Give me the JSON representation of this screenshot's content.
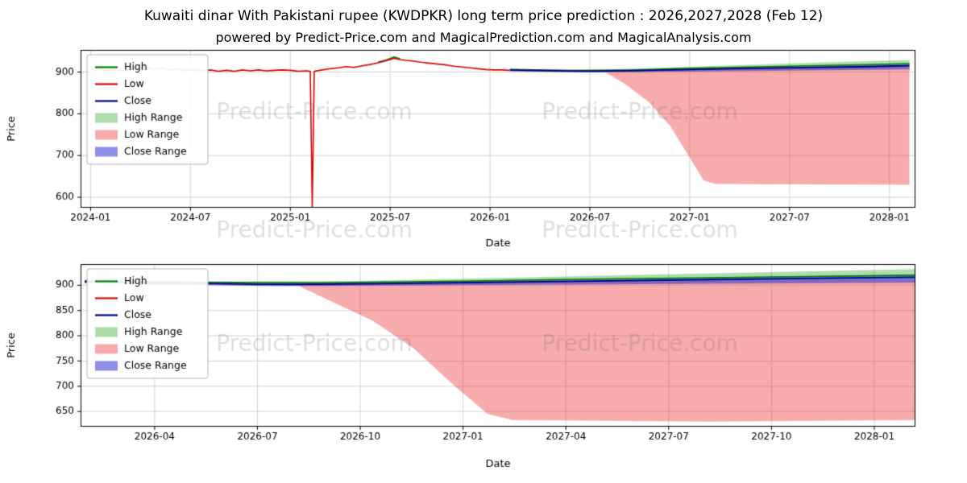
{
  "header": {
    "title": "Kuwaiti dinar With Pakistani rupee (KWDPKR) long term price prediction : 2026,2027,2028 (Feb 12)",
    "subtitle": "powered by Predict-Price.com and MagicalPrediction.com and MagicalAnalysis.com"
  },
  "watermark_text": "Predict-Price.com",
  "colors": {
    "high_line": "#008000",
    "low_line": "#dd0000",
    "close_line": "#00008b",
    "high_range_fill": "rgba(0,150,0,0.32)",
    "low_range_fill": "rgba(235,70,70,0.45)",
    "close_range_fill": "rgba(40,40,210,0.52)",
    "grid": "#d3d3d3",
    "watermark": "rgba(110,110,110,0.22)"
  },
  "chart_data": [
    {
      "type": "line",
      "title": "",
      "xlabel": "Date",
      "ylabel": "Price",
      "xlim": [
        2023.95,
        2028.13
      ],
      "ylim": [
        575,
        953
      ],
      "x_ticks": [
        {
          "v": 2024.0,
          "label": "2024-01"
        },
        {
          "v": 2024.5,
          "label": "2024-07"
        },
        {
          "v": 2025.0,
          "label": "2025-01"
        },
        {
          "v": 2025.5,
          "label": "2025-07"
        },
        {
          "v": 2026.0,
          "label": "2026-01"
        },
        {
          "v": 2026.5,
          "label": "2026-07"
        },
        {
          "v": 2027.0,
          "label": "2027-01"
        },
        {
          "v": 2027.5,
          "label": "2027-07"
        },
        {
          "v": 2028.0,
          "label": "2028-01"
        }
      ],
      "y_ticks": [
        {
          "v": 600,
          "label": "600"
        },
        {
          "v": 700,
          "label": "700"
        },
        {
          "v": 800,
          "label": "800"
        },
        {
          "v": 900,
          "label": "900"
        }
      ],
      "legend": [
        {
          "label": "High",
          "swatch": "line",
          "color": "#008000"
        },
        {
          "label": "Low",
          "swatch": "line",
          "color": "#dd0000"
        },
        {
          "label": "Close",
          "swatch": "line",
          "color": "#00008b"
        },
        {
          "label": "High Range",
          "swatch": "patch",
          "color": "rgba(0,150,0,0.32)"
        },
        {
          "label": "Low Range",
          "swatch": "patch",
          "color": "rgba(235,70,70,0.45)"
        },
        {
          "label": "Close Range",
          "swatch": "patch",
          "color": "rgba(40,40,210,0.52)"
        }
      ],
      "bands": [
        {
          "name": "High Range",
          "color": "rgba(0,150,0,0.32)",
          "upper": [
            [
              2026.1,
              907
            ],
            [
              2026.5,
              905
            ],
            [
              2026.8,
              909
            ],
            [
              2027.2,
              916
            ],
            [
              2027.6,
              922
            ],
            [
              2028.1,
              929
            ]
          ],
          "lower": [
            [
              2026.1,
              903
            ],
            [
              2026.5,
              901
            ],
            [
              2027.0,
              904
            ],
            [
              2027.6,
              908
            ],
            [
              2028.1,
              911
            ]
          ]
        },
        {
          "name": "Low Range",
          "color": "rgba(235,70,70,0.45)",
          "upper": [
            [
              2026.1,
              905
            ],
            [
              2026.5,
              902
            ],
            [
              2027.0,
              906
            ],
            [
              2027.6,
              910
            ],
            [
              2028.1,
              912
            ]
          ],
          "lower": [
            [
              2026.1,
              902
            ],
            [
              2026.58,
              899
            ],
            [
              2026.68,
              870
            ],
            [
              2026.79,
              830
            ],
            [
              2026.9,
              772
            ],
            [
              2027.0,
              695
            ],
            [
              2027.07,
              640
            ],
            [
              2027.13,
              632
            ],
            [
              2027.6,
              631
            ],
            [
              2028.1,
              630
            ]
          ]
        },
        {
          "name": "Close Range",
          "color": "rgba(40,40,210,0.52)",
          "upper": [
            [
              2026.1,
              907
            ],
            [
              2026.5,
              904
            ],
            [
              2027.0,
              908
            ],
            [
              2027.6,
              914
            ],
            [
              2028.1,
              920
            ]
          ],
          "lower": [
            [
              2026.1,
              902
            ],
            [
              2026.5,
              899
            ],
            [
              2027.0,
              901
            ],
            [
              2027.6,
              904
            ],
            [
              2028.1,
              906
            ]
          ]
        }
      ],
      "series": [
        {
          "name": "High",
          "color": "#008000",
          "width": 1.5,
          "points": [
            [
              2025.44,
              924
            ],
            [
              2025.48,
              929
            ],
            [
              2025.52,
              936
            ],
            [
              2025.55,
              932
            ],
            null,
            [
              2026.1,
              906
            ],
            [
              2026.4,
              904
            ],
            [
              2026.7,
              905
            ],
            [
              2027.0,
              909
            ],
            [
              2027.3,
              912
            ],
            [
              2027.6,
              915
            ],
            [
              2027.9,
              918
            ],
            [
              2028.1,
              920
            ]
          ]
        },
        {
          "name": "Close",
          "color": "#00008b",
          "width": 1.8,
          "points": [
            [
              2026.1,
              905
            ],
            [
              2026.3,
              903
            ],
            [
              2026.5,
              902
            ],
            [
              2026.7,
              903
            ],
            [
              2027.0,
              906
            ],
            [
              2027.3,
              909
            ],
            [
              2027.6,
              911
            ],
            [
              2027.9,
              913
            ],
            [
              2028.1,
              915
            ]
          ]
        },
        {
          "name": "Low",
          "color": "#dd0000",
          "width": 1.6,
          "points": [
            [
              2024.0,
              906
            ],
            [
              2024.04,
              909
            ],
            [
              2024.08,
              904
            ],
            [
              2024.12,
              907
            ],
            [
              2024.16,
              903
            ],
            [
              2024.2,
              906
            ],
            [
              2024.24,
              909
            ],
            [
              2024.28,
              911
            ],
            [
              2024.32,
              907
            ],
            [
              2024.36,
              909
            ],
            [
              2024.4,
              905
            ],
            [
              2024.44,
              907
            ],
            [
              2024.48,
              904
            ],
            [
              2024.52,
              906
            ],
            [
              2024.56,
              903
            ],
            [
              2024.6,
              905
            ],
            [
              2024.64,
              902
            ],
            [
              2024.68,
              904
            ],
            [
              2024.72,
              902
            ],
            [
              2024.76,
              905
            ],
            [
              2024.8,
              903
            ],
            [
              2024.84,
              905
            ],
            [
              2024.88,
              903
            ],
            [
              2024.92,
              904
            ],
            [
              2024.96,
              905
            ],
            [
              2025.0,
              904
            ],
            [
              2025.04,
              902
            ],
            [
              2025.08,
              903
            ],
            [
              2025.1,
              902
            ],
            [
              2025.11,
              578
            ],
            [
              2025.12,
              902
            ],
            [
              2025.16,
              905
            ],
            [
              2025.2,
              908
            ],
            [
              2025.24,
              910
            ],
            [
              2025.28,
              913
            ],
            [
              2025.32,
              911
            ],
            [
              2025.36,
              915
            ],
            [
              2025.4,
              918
            ],
            [
              2025.44,
              922
            ],
            [
              2025.48,
              927
            ],
            [
              2025.52,
              933
            ],
            [
              2025.55,
              930
            ],
            [
              2025.58,
              928
            ],
            [
              2025.62,
              926
            ],
            [
              2025.66,
              923
            ],
            [
              2025.7,
              921
            ],
            [
              2025.74,
              919
            ],
            [
              2025.78,
              917
            ],
            [
              2025.82,
              914
            ],
            [
              2025.86,
              912
            ],
            [
              2025.9,
              910
            ],
            [
              2025.94,
              908
            ],
            [
              2025.98,
              906
            ],
            [
              2026.02,
              905
            ],
            [
              2026.06,
              905
            ],
            [
              2026.1,
              904
            ]
          ]
        }
      ],
      "watermarks": [
        {
          "fx": 0.28,
          "fy": 0.4
        },
        {
          "fx": 0.67,
          "fy": 0.4
        },
        {
          "fx": 0.28,
          "fy": 1.15
        },
        {
          "fx": 0.67,
          "fy": 1.15
        }
      ]
    },
    {
      "type": "line",
      "title": "",
      "xlabel": "Date",
      "ylabel": "Price",
      "xlim": [
        2026.07,
        2028.1
      ],
      "ylim": [
        620,
        942
      ],
      "x_ticks": [
        {
          "v": 2026.25,
          "label": "2026-04"
        },
        {
          "v": 2026.5,
          "label": "2026-07"
        },
        {
          "v": 2026.75,
          "label": "2026-10"
        },
        {
          "v": 2027.0,
          "label": "2027-01"
        },
        {
          "v": 2027.25,
          "label": "2027-04"
        },
        {
          "v": 2027.5,
          "label": "2027-07"
        },
        {
          "v": 2027.75,
          "label": "2027-10"
        },
        {
          "v": 2028.0,
          "label": "2028-01"
        }
      ],
      "y_ticks": [
        {
          "v": 650,
          "label": "650"
        },
        {
          "v": 700,
          "label": "700"
        },
        {
          "v": 750,
          "label": "750"
        },
        {
          "v": 800,
          "label": "800"
        },
        {
          "v": 850,
          "label": "850"
        },
        {
          "v": 900,
          "label": "900"
        }
      ],
      "legend": [
        {
          "label": "High",
          "swatch": "line",
          "color": "#008000"
        },
        {
          "label": "Low",
          "swatch": "line",
          "color": "#dd0000"
        },
        {
          "label": "Close",
          "swatch": "line",
          "color": "#00008b"
        },
        {
          "label": "High Range",
          "swatch": "patch",
          "color": "rgba(0,150,0,0.32)"
        },
        {
          "label": "Low Range",
          "swatch": "patch",
          "color": "rgba(235,70,70,0.45)"
        },
        {
          "label": "Close Range",
          "swatch": "patch",
          "color": "rgba(40,40,210,0.52)"
        }
      ],
      "bands": [
        {
          "name": "High Range",
          "color": "rgba(0,150,0,0.32)",
          "upper": [
            [
              2026.08,
              911
            ],
            [
              2026.4,
              907
            ],
            [
              2026.7,
              908
            ],
            [
              2027.0,
              913
            ],
            [
              2027.4,
              920
            ],
            [
              2027.8,
              927
            ],
            [
              2028.1,
              932
            ]
          ],
          "lower": [
            [
              2026.08,
              905
            ],
            [
              2026.55,
              901
            ],
            [
              2027.0,
              904
            ],
            [
              2027.6,
              908
            ],
            [
              2028.1,
              911
            ]
          ]
        },
        {
          "name": "Low Range",
          "color": "rgba(235,70,70,0.45)",
          "upper": [
            [
              2026.08,
              906
            ],
            [
              2026.55,
              901
            ],
            [
              2027.0,
              905
            ],
            [
              2027.6,
              909
            ],
            [
              2028.1,
              911
            ]
          ],
          "lower": [
            [
              2026.08,
              904
            ],
            [
              2026.6,
              899
            ],
            [
              2026.68,
              868
            ],
            [
              2026.78,
              830
            ],
            [
              2026.88,
              775
            ],
            [
              2026.98,
              700
            ],
            [
              2027.06,
              645
            ],
            [
              2027.12,
              633
            ],
            [
              2027.6,
              630
            ],
            [
              2028.1,
              633
            ]
          ]
        },
        {
          "name": "Close Range",
          "color": "rgba(40,40,210,0.52)",
          "upper": [
            [
              2026.08,
              909
            ],
            [
              2026.55,
              904
            ],
            [
              2027.0,
              908
            ],
            [
              2027.6,
              915
            ],
            [
              2028.1,
              921
            ]
          ],
          "lower": [
            [
              2026.08,
              904
            ],
            [
              2026.55,
              898
            ],
            [
              2027.0,
              900
            ],
            [
              2027.6,
              903
            ],
            [
              2028.1,
              905
            ]
          ]
        }
      ],
      "series": [
        {
          "name": "High",
          "color": "#008000",
          "width": 1.5,
          "points": [
            [
              2026.08,
              909
            ],
            [
              2026.35,
              906
            ],
            [
              2026.65,
              905
            ],
            [
              2027.0,
              908
            ],
            [
              2027.3,
              912
            ],
            [
              2027.6,
              915
            ],
            [
              2027.9,
              918
            ],
            [
              2028.1,
              920
            ]
          ]
        },
        {
          "name": "Close",
          "color": "#00008b",
          "width": 1.8,
          "points": [
            [
              2026.08,
              907
            ],
            [
              2026.2,
              905
            ],
            [
              2026.35,
              904
            ],
            [
              2026.5,
              902
            ],
            [
              2026.65,
              902
            ],
            [
              2026.8,
              903
            ],
            [
              2027.0,
              905
            ],
            [
              2027.2,
              907
            ],
            [
              2027.4,
              909
            ],
            [
              2027.6,
              911
            ],
            [
              2027.8,
              913
            ],
            [
              2028.0,
              915
            ],
            [
              2028.1,
              916
            ]
          ]
        }
      ],
      "watermarks": [
        {
          "fx": 0.28,
          "fy": 0.5
        },
        {
          "fx": 0.67,
          "fy": 0.5
        }
      ]
    }
  ]
}
